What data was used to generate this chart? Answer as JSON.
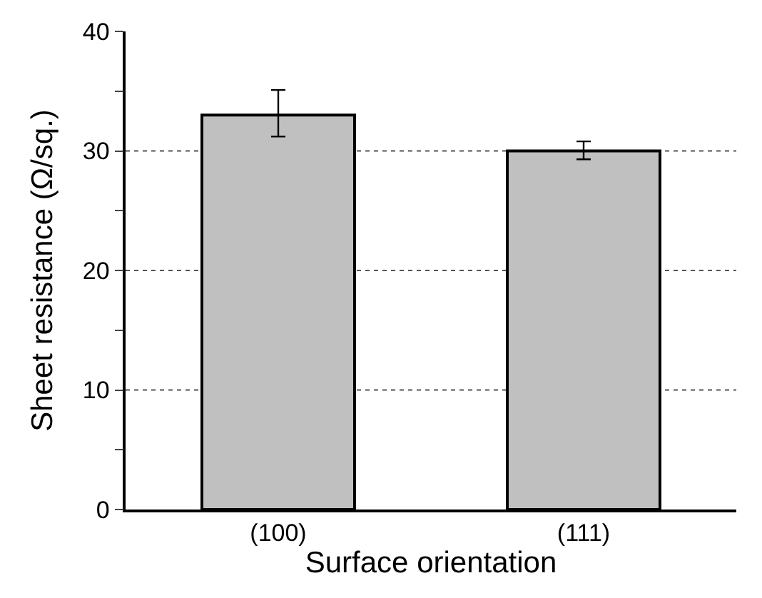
{
  "chart_data": {
    "type": "bar",
    "xlabel": "Surface orientation",
    "ylabel": "Sheet resistance (Ω/sq.)",
    "categories": [
      "(100)",
      "(111)"
    ],
    "values": [
      33,
      30
    ],
    "errors": [
      [
        31.2,
        35.1
      ],
      [
        29.3,
        30.8
      ]
    ],
    "color": "#c0c0c0",
    "ylim": [
      0,
      40
    ],
    "yticks": [
      0,
      {
        "value": 5,
        "label": null
      },
      10,
      {
        "value": 15,
        "label": null
      },
      20,
      {
        "value": 25,
        "label": null
      },
      30,
      {
        "value": 35,
        "label": null
      },
      40
    ],
    "grid": "y",
    "legend": false
  }
}
